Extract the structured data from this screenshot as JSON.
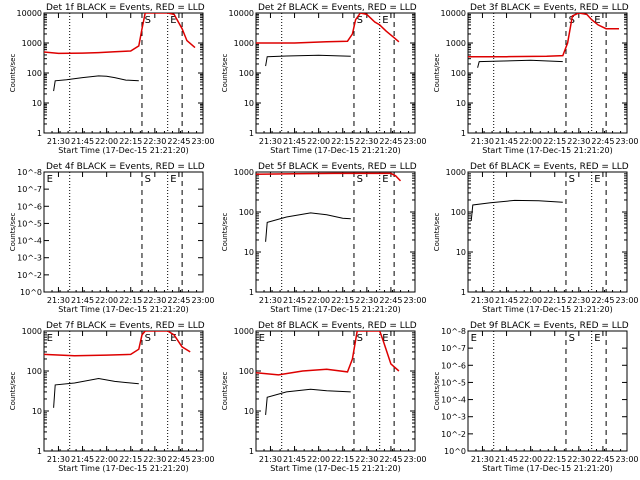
{
  "colors": {
    "events": "#000000",
    "lld": "#dd0000",
    "frame": "#000000",
    "background": "#ffffff"
  },
  "x_tick_labels": [
    "21:30",
    "21:45",
    "22:00",
    "22:15",
    "22:30",
    "22:45",
    "23:00"
  ],
  "x_label": "Start Time (17-Dec-15 21:21:20)",
  "y_label": "Counts/sec",
  "chart_data": [
    {
      "type": "line",
      "panel": 1,
      "title": "Det 1f BLACK = Events, RED = LLD",
      "ylim": [
        1,
        10000
      ],
      "log_y": true,
      "y_tick_labels": [
        "1",
        "10",
        "100",
        "1000",
        "10000"
      ],
      "xlim": [
        "21:21",
        "23:00"
      ],
      "vlines": [
        {
          "x": "21:37",
          "style": "dotted"
        },
        {
          "x": "22:22",
          "style": "dashed"
        },
        {
          "x": "22:38",
          "style": "dotted"
        },
        {
          "x": "22:47",
          "style": "dashed"
        }
      ],
      "markers": [
        {
          "x": "22:23",
          "label": "S"
        },
        {
          "x": "22:39",
          "label": "E"
        }
      ],
      "series": [
        {
          "color_key": "lld",
          "x": [
            "21:21",
            "21:30",
            "21:45",
            "21:55",
            "22:05",
            "22:15",
            "22:20",
            "22:22",
            "22:24",
            "22:38",
            "22:42",
            "22:47",
            "22:50",
            "22:55"
          ],
          "y": [
            500,
            450,
            460,
            480,
            510,
            540,
            800,
            3000,
            10000,
            10000,
            9000,
            3000,
            1200,
            700
          ]
        },
        {
          "color_key": "events",
          "x": [
            "21:27",
            "21:28",
            "21:35",
            "21:45",
            "21:55",
            "22:00",
            "22:05",
            "22:12",
            "22:20"
          ],
          "y": [
            25,
            55,
            60,
            70,
            80,
            78,
            70,
            58,
            55
          ]
        }
      ]
    },
    {
      "type": "line",
      "panel": 2,
      "title": "Det 2f BLACK = Events, RED = LLD",
      "ylim": [
        1,
        10000
      ],
      "log_y": true,
      "y_tick_labels": [
        "1",
        "10",
        "100",
        "1000",
        "10000"
      ],
      "xlim": [
        "21:21",
        "23:00"
      ],
      "vlines": [
        {
          "x": "21:37",
          "style": "dotted"
        },
        {
          "x": "22:22",
          "style": "dashed"
        },
        {
          "x": "22:38",
          "style": "dotted"
        },
        {
          "x": "22:47",
          "style": "dashed"
        }
      ],
      "markers": [
        {
          "x": "22:23",
          "label": "S"
        },
        {
          "x": "22:39",
          "label": "E"
        }
      ],
      "series": [
        {
          "color_key": "lld",
          "x": [
            "21:21",
            "21:45",
            "22:05",
            "22:18",
            "22:21",
            "22:23",
            "22:26",
            "22:30",
            "22:35",
            "22:38",
            "22:42",
            "22:47",
            "22:50"
          ],
          "y": [
            1000,
            1000,
            1100,
            1150,
            2000,
            6000,
            10000,
            9000,
            5000,
            4000,
            2500,
            1500,
            1100
          ]
        },
        {
          "color_key": "events",
          "x": [
            "21:27",
            "21:28",
            "21:40",
            "22:00",
            "22:20"
          ],
          "y": [
            170,
            350,
            370,
            390,
            360
          ]
        }
      ]
    },
    {
      "type": "line",
      "panel": 3,
      "title": "Det 3f BLACK = Events, RED = LLD",
      "ylim": [
        1,
        10000
      ],
      "log_y": true,
      "y_tick_labels": [
        "1",
        "10",
        "100",
        "1000",
        "10000"
      ],
      "xlim": [
        "21:21",
        "23:00"
      ],
      "vlines": [
        {
          "x": "21:37",
          "style": "dotted"
        },
        {
          "x": "22:22",
          "style": "dashed"
        },
        {
          "x": "22:38",
          "style": "dotted"
        },
        {
          "x": "22:47",
          "style": "dashed"
        }
      ],
      "markers": [
        {
          "x": "22:23",
          "label": "S"
        },
        {
          "x": "22:39",
          "label": "E"
        }
      ],
      "series": [
        {
          "color_key": "lld",
          "x": [
            "21:21",
            "21:45",
            "22:10",
            "22:20",
            "22:23",
            "22:26",
            "22:30",
            "22:35",
            "22:38",
            "22:42",
            "22:47",
            "22:55"
          ],
          "y": [
            350,
            350,
            360,
            380,
            1000,
            8000,
            10000,
            9000,
            6000,
            4000,
            3000,
            3000
          ]
        },
        {
          "color_key": "events",
          "x": [
            "21:27",
            "21:28",
            "21:40",
            "22:00",
            "22:20"
          ],
          "y": [
            150,
            240,
            250,
            265,
            240
          ]
        }
      ]
    },
    {
      "type": "line",
      "panel": 4,
      "title": "Det 4f BLACK = Events, RED = LLD",
      "ylim": [
        1,
        100000000
      ],
      "log_y": true,
      "y_tick_labels": [
        "10^0",
        "10^-2",
        "10^-3",
        "10^-4",
        "10^-5",
        "10^-6",
        "10^-7",
        "10^-8"
      ],
      "xlim": [
        "21:21",
        "23:00"
      ],
      "vlines": [
        {
          "x": "21:37",
          "style": "dotted"
        },
        {
          "x": "22:22",
          "style": "dashed"
        },
        {
          "x": "22:38",
          "style": "dotted"
        },
        {
          "x": "22:47",
          "style": "dashed"
        }
      ],
      "markers": [
        {
          "x": "21:22",
          "label": "E"
        },
        {
          "x": "22:23",
          "label": "S"
        },
        {
          "x": "22:39",
          "label": "E"
        }
      ],
      "series": []
    },
    {
      "type": "line",
      "panel": 5,
      "title": "Det 5f BLACK = Events, RED = LLD",
      "ylim": [
        1,
        1000
      ],
      "log_y": true,
      "y_tick_labels": [
        "1",
        "10",
        "100",
        "1000"
      ],
      "xlim": [
        "21:21",
        "23:00"
      ],
      "vlines": [
        {
          "x": "21:37",
          "style": "dotted"
        },
        {
          "x": "22:22",
          "style": "dashed"
        },
        {
          "x": "22:38",
          "style": "dotted"
        },
        {
          "x": "22:47",
          "style": "dashed"
        }
      ],
      "markers": [
        {
          "x": "22:23",
          "label": "S"
        },
        {
          "x": "22:39",
          "label": "E"
        }
      ],
      "series": [
        {
          "color_key": "lld",
          "x": [
            "21:21",
            "21:45",
            "22:10",
            "22:22",
            "22:30",
            "22:45",
            "22:48",
            "22:51"
          ],
          "y": [
            880,
            900,
            920,
            920,
            920,
            920,
            800,
            600
          ]
        },
        {
          "color_key": "events",
          "x": [
            "21:27",
            "21:28",
            "21:40",
            "21:55",
            "22:05",
            "22:15",
            "22:20"
          ],
          "y": [
            18,
            55,
            75,
            95,
            85,
            70,
            68
          ]
        }
      ]
    },
    {
      "type": "line",
      "panel": 6,
      "title": "Det 6f BLACK = Events, RED = LLD",
      "ylim": [
        1,
        1000
      ],
      "log_y": true,
      "y_tick_labels": [
        "1",
        "10",
        "100",
        "1000"
      ],
      "xlim": [
        "21:21",
        "23:00"
      ],
      "vlines": [
        {
          "x": "21:37",
          "style": "dotted"
        },
        {
          "x": "22:22",
          "style": "dashed"
        },
        {
          "x": "22:38",
          "style": "dotted"
        },
        {
          "x": "22:47",
          "style": "dashed"
        }
      ],
      "markers": [
        {
          "x": "22:23",
          "label": "S"
        },
        {
          "x": "22:39",
          "label": "E"
        }
      ],
      "series": [
        {
          "color_key": "events",
          "x": [
            "21:23",
            "21:24",
            "21:35",
            "21:50",
            "22:05",
            "22:20"
          ],
          "y": [
            60,
            150,
            170,
            195,
            190,
            175
          ]
        }
      ]
    },
    {
      "type": "line",
      "panel": 7,
      "title": "Det 7f BLACK = Events, RED = LLD",
      "ylim": [
        1,
        1000
      ],
      "log_y": true,
      "y_tick_labels": [
        "1",
        "10",
        "100",
        "1000"
      ],
      "xlim": [
        "21:21",
        "23:00"
      ],
      "vlines": [
        {
          "x": "21:37",
          "style": "dotted"
        },
        {
          "x": "22:22",
          "style": "dashed"
        },
        {
          "x": "22:38",
          "style": "dotted"
        },
        {
          "x": "22:47",
          "style": "dashed"
        }
      ],
      "markers": [
        {
          "x": "21:22",
          "label": "E"
        },
        {
          "x": "22:23",
          "label": "S"
        },
        {
          "x": "22:39",
          "label": "E"
        }
      ],
      "series": [
        {
          "color_key": "lld",
          "x": [
            "21:21",
            "21:40",
            "22:00",
            "22:15",
            "22:20",
            "22:22",
            "22:24",
            "22:38",
            "22:42",
            "22:47",
            "22:52"
          ],
          "y": [
            260,
            240,
            250,
            260,
            350,
            800,
            1000,
            1000,
            800,
            400,
            300
          ]
        },
        {
          "color_key": "events",
          "x": [
            "21:27",
            "21:28",
            "21:40",
            "21:55",
            "22:05",
            "22:20"
          ],
          "y": [
            12,
            45,
            50,
            65,
            55,
            48
          ]
        }
      ]
    },
    {
      "type": "line",
      "panel": 8,
      "title": "Det 8f BLACK = Events, RED = LLD",
      "ylim": [
        1,
        1000
      ],
      "log_y": true,
      "y_tick_labels": [
        "1",
        "10",
        "100",
        "1000"
      ],
      "xlim": [
        "21:21",
        "23:00"
      ],
      "vlines": [
        {
          "x": "21:37",
          "style": "dotted"
        },
        {
          "x": "22:22",
          "style": "dashed"
        },
        {
          "x": "22:38",
          "style": "dotted"
        },
        {
          "x": "22:47",
          "style": "dashed"
        }
      ],
      "markers": [
        {
          "x": "21:22",
          "label": "E"
        },
        {
          "x": "22:23",
          "label": "S"
        },
        {
          "x": "22:39",
          "label": "E"
        }
      ],
      "series": [
        {
          "color_key": "lld",
          "x": [
            "21:21",
            "21:35",
            "21:50",
            "22:05",
            "22:18",
            "22:21",
            "22:24",
            "22:38",
            "22:40",
            "22:45",
            "22:50"
          ],
          "y": [
            90,
            80,
            100,
            110,
            95,
            200,
            1000,
            1000,
            600,
            150,
            100
          ]
        },
        {
          "color_key": "events",
          "x": [
            "21:27",
            "21:28",
            "21:40",
            "21:55",
            "22:05",
            "22:20"
          ],
          "y": [
            8,
            22,
            30,
            35,
            32,
            30
          ]
        }
      ]
    },
    {
      "type": "line",
      "panel": 9,
      "title": "Det 9f BLACK = Events, RED = LLD",
      "ylim": [
        1,
        100000000
      ],
      "log_y": true,
      "y_tick_labels": [
        "10^0",
        "10^-2",
        "10^-3",
        "10^-4",
        "10^-5",
        "10^-6",
        "10^-7",
        "10^-8"
      ],
      "xlim": [
        "21:21",
        "23:00"
      ],
      "vlines": [
        {
          "x": "21:37",
          "style": "dotted"
        },
        {
          "x": "22:22",
          "style": "dashed"
        },
        {
          "x": "22:38",
          "style": "dotted"
        },
        {
          "x": "22:47",
          "style": "dashed"
        }
      ],
      "markers": [
        {
          "x": "21:22",
          "label": "E"
        },
        {
          "x": "22:23",
          "label": "S"
        },
        {
          "x": "22:39",
          "label": "E"
        }
      ],
      "series": []
    }
  ]
}
